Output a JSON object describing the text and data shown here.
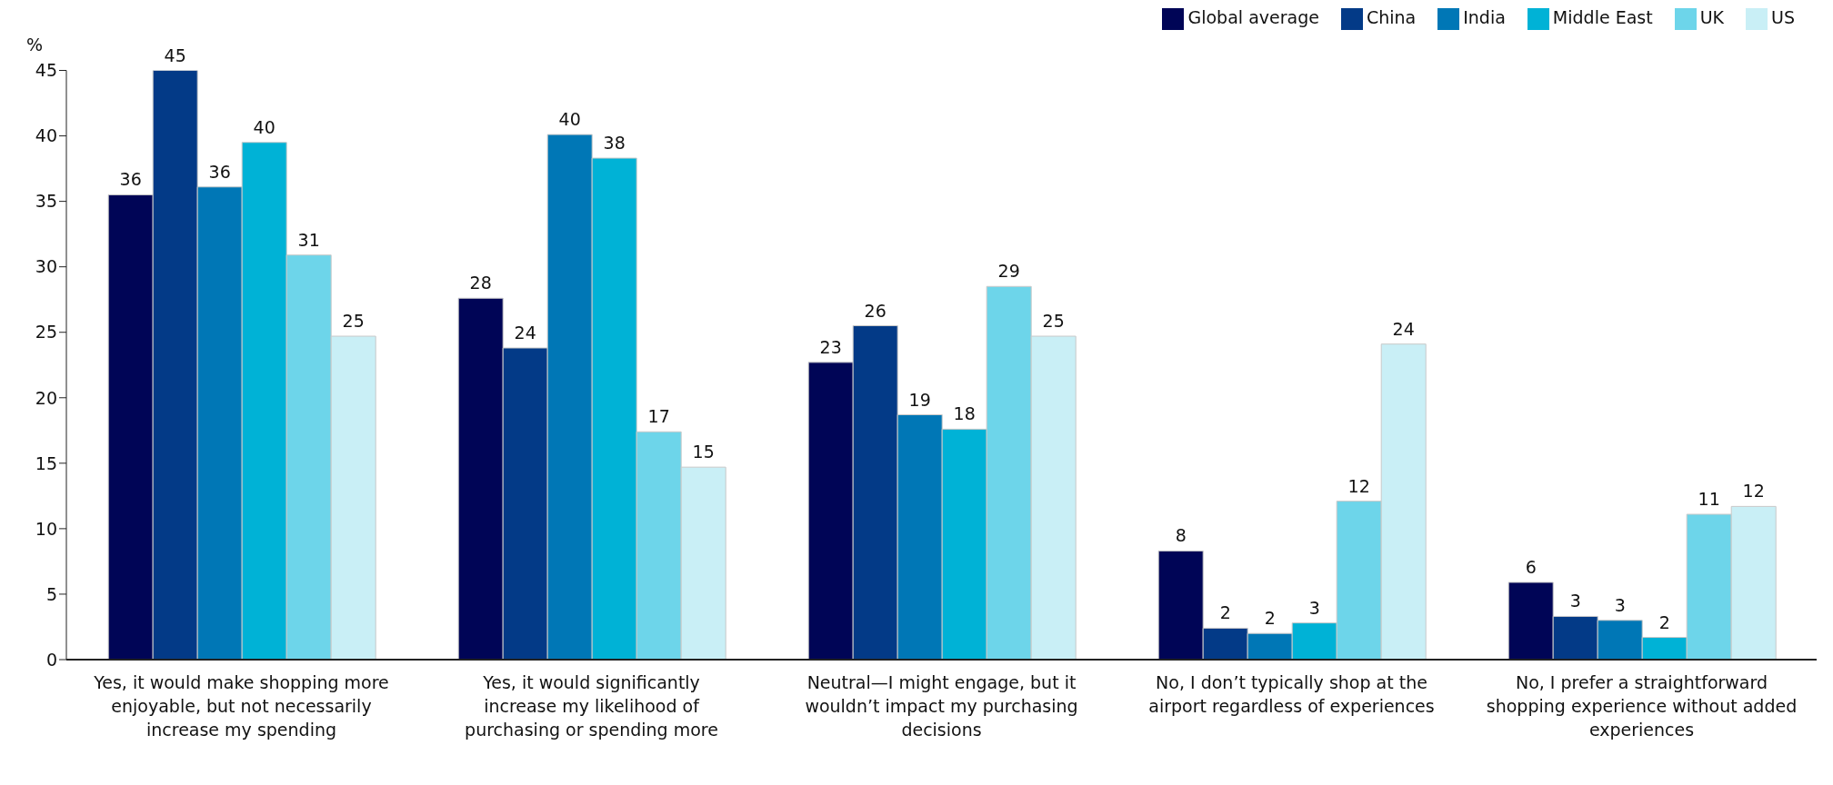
{
  "chart_data": {
    "type": "bar",
    "ylabel": "%",
    "categories": [
      "Yes, it would make shopping more enjoyable, but not necessarily increase my spending",
      "Yes, it would significantly increase my likelihood of purchasing or spending more",
      "Neutral—I might engage, but it wouldn’t impact my purchasing decisions",
      "No, I don’t typically shop at the airport regardless of experiences",
      "No, I prefer a straightforward shopping experience without added experiences"
    ],
    "series": [
      {
        "name": "Global average",
        "color": "#000556",
        "values": [
          35.5,
          27.6,
          22.7,
          8.3,
          5.9
        ],
        "value_labels": [
          "36",
          "28",
          "23",
          "8",
          "6"
        ]
      },
      {
        "name": "China",
        "color": "#033a87",
        "values": [
          45,
          23.8,
          25.5,
          2.4,
          3.3
        ],
        "value_labels": [
          "45",
          "24",
          "26",
          "2",
          "3"
        ]
      },
      {
        "name": "India",
        "color": "#0077b6",
        "values": [
          36.1,
          40.1,
          18.7,
          2.0,
          3.0
        ],
        "value_labels": [
          "36",
          "40",
          "19",
          "2",
          "3"
        ]
      },
      {
        "name": "Middle East",
        "color": "#00b2d6",
        "values": [
          39.5,
          38.3,
          17.6,
          2.8,
          1.7
        ],
        "value_labels": [
          "40",
          "38",
          "18",
          "3",
          "2"
        ]
      },
      {
        "name": "UK",
        "color": "#6dd5ea",
        "values": [
          30.9,
          17.4,
          28.5,
          12.1,
          11.1
        ],
        "value_labels": [
          "31",
          "17",
          "29",
          "12",
          "11"
        ]
      },
      {
        "name": "US",
        "color": "#c9eff6",
        "values": [
          24.7,
          14.7,
          24.7,
          24.1,
          11.7
        ],
        "value_labels": [
          "25",
          "15",
          "25",
          "24",
          "12"
        ]
      }
    ],
    "ylim": [
      0,
      45
    ],
    "yticks": [
      0,
      5,
      10,
      15,
      20,
      25,
      30,
      35,
      40,
      45
    ],
    "grid": false,
    "legend": "top right"
  }
}
